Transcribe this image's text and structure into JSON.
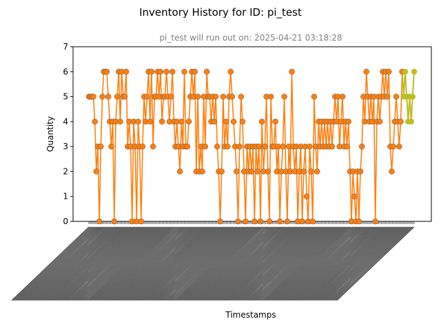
{
  "chart_data": {
    "type": "line",
    "title": "Inventory History for ID: pi_test",
    "subtitle": "pi_test will run out on: 2025-04-21 03:18:28",
    "xlabel": "Timestamps",
    "ylabel": "Quantity",
    "ylim": [
      0,
      7
    ],
    "yticks": [
      0,
      1,
      2,
      3,
      4,
      5,
      6,
      7
    ],
    "x_tick_count": 240,
    "colors": {
      "history": "#ff7f0e",
      "forecast": "#bcbd22",
      "marker_edge": "#555555"
    },
    "series": [
      {
        "values": [
          5,
          5,
          5,
          5,
          4,
          2,
          3,
          0,
          3,
          5,
          6,
          6,
          6,
          5,
          4,
          3,
          4,
          0,
          4,
          5,
          6,
          4,
          6,
          5,
          5,
          6,
          3,
          4,
          3,
          0,
          4,
          3,
          0,
          4,
          3,
          0,
          3,
          5,
          4,
          5,
          6,
          4,
          6,
          3,
          5,
          5,
          6,
          5,
          6,
          4,
          5,
          5,
          6,
          5,
          4,
          5,
          6,
          4,
          3,
          4,
          3,
          2,
          4,
          3,
          6,
          3,
          3,
          4,
          5,
          6,
          5,
          6,
          2,
          5,
          2,
          3,
          2,
          5,
          3,
          6,
          5,
          5,
          4,
          5,
          4,
          5,
          3,
          2,
          0,
          2,
          5,
          3,
          4,
          3,
          5,
          6,
          5,
          4,
          3,
          2,
          0,
          3,
          5,
          4,
          2,
          0,
          3,
          2,
          3,
          2,
          3,
          0,
          3,
          2,
          3,
          0,
          4,
          2,
          3,
          5,
          2,
          0,
          5,
          3,
          3,
          4,
          2,
          3,
          0,
          2,
          3,
          5,
          2,
          0,
          3,
          2,
          6,
          3,
          2,
          3,
          0,
          2,
          3,
          0,
          2,
          3,
          1,
          0,
          3,
          2,
          0,
          5,
          3,
          2,
          4,
          3,
          4,
          3,
          4,
          3,
          4,
          3,
          4,
          3,
          4,
          5,
          4,
          5,
          3,
          4,
          5,
          3,
          4,
          3,
          4,
          2,
          0,
          2,
          1,
          0,
          2,
          0,
          2,
          3,
          5,
          4,
          6,
          5,
          4,
          5,
          4,
          5,
          0,
          4,
          5,
          4,
          5,
          6,
          5,
          6,
          5,
          6,
          3,
          2,
          3,
          4,
          5,
          4,
          3,
          4,
          6
        ],
        "forecast_values": [
          5,
          6,
          5,
          4,
          5,
          4,
          5,
          6
        ]
      }
    ]
  }
}
